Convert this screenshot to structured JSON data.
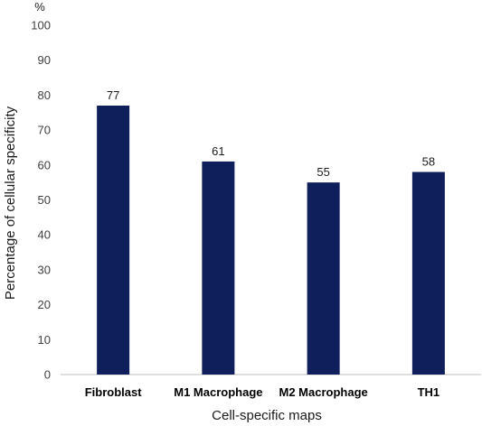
{
  "chart_data": {
    "type": "bar",
    "categories": [
      "Fibroblast",
      "M1 Macrophage",
      "M2 Macrophage",
      "TH1"
    ],
    "values": [
      77,
      61,
      55,
      58
    ],
    "xlabel": "Cell-specific maps",
    "ylabel": "Percentage of cellular specificity",
    "y_unit": "%",
    "ylim": [
      0,
      100
    ],
    "yticks": [
      0,
      10,
      20,
      30,
      40,
      50,
      60,
      70,
      80,
      90,
      100
    ],
    "grid": false,
    "legend": "none",
    "bar_color": "#0e1f5b",
    "data_labels": true
  }
}
